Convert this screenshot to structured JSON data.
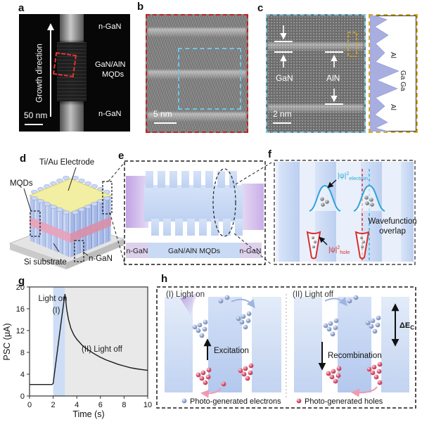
{
  "panel_letters": {
    "a": "a",
    "b": "b",
    "c": "c",
    "d": "d",
    "e": "e",
    "f": "f",
    "g": "g",
    "h": "h"
  },
  "colors": {
    "red_dashed": "#c9201d",
    "cyan_dashed": "#74c6e4",
    "yellow_dashed": "#d8a91f",
    "light_on_band": "#cdddf6",
    "light_off_band": "#e9e9e9",
    "electron_sphere": "#8fa0cc",
    "hole_sphere": "#d44d66",
    "wavefunction_blue": "#2ba4d8",
    "wavefunction_red": "#d62f2f"
  },
  "panel_a": {
    "growth_direction": "Growth direction",
    "region_top": "n-GaN",
    "region_mid_1": "GaN/AlN",
    "region_mid_2": "MQDs",
    "region_bottom": "n-GaN",
    "scale_bar": "50 nm"
  },
  "panel_b": {
    "scale_bar": "5 nm"
  },
  "panel_c": {
    "gan_label": "GaN",
    "aln_label": "AlN",
    "scale_bar": "2 nm",
    "profile": {
      "al_top": "Al",
      "ga_mid": "Ga Ga",
      "al_bottom": "Al"
    }
  },
  "panel_d": {
    "electrode": "Ti/Au Electrode",
    "mqds": "MQDs",
    "substrate": "Si substrate",
    "n_gan": "n-GaN"
  },
  "panel_e": {
    "left": "n-GaN",
    "mid": "GaN/AlN MQDs",
    "right": "n-GaN"
  },
  "panel_f": {
    "psi_prefix": "|ψ|",
    "psi_sup": "2",
    "electron_sub": "electron",
    "hole_sub": "hole",
    "overlap_1": "Wavefunction",
    "overlap_2": "overlap"
  },
  "panel_h": {
    "sec1_title": "(I)  Light on",
    "excitation": "Excitation",
    "legend_electrons": "Photo-generated electrons",
    "sec2_title": "(II)  Light off",
    "recombination": "Recombination",
    "legend_holes": "Photo-generated holes",
    "delta_e": "ΔE",
    "delta_e_sub": "C"
  },
  "chart_data": {
    "type": "line",
    "xlabel": "Time (s)",
    "ylabel": "PSC (μA)",
    "xlim": [
      0,
      10
    ],
    "ylim": [
      0,
      20
    ],
    "xticks": [
      0,
      2,
      4,
      6,
      8,
      10
    ],
    "yticks": [
      0,
      4,
      8,
      12,
      16,
      20
    ],
    "x": [
      0,
      1.9,
      2.0,
      2.1,
      2.25,
      2.4,
      2.55,
      2.7,
      2.85,
      3.0,
      3.05,
      3.15,
      3.3,
      3.5,
      3.75,
      4.0,
      4.5,
      5.0,
      5.5,
      6.0,
      6.5,
      7.0,
      7.5,
      8.0,
      8.5,
      9.0,
      9.5,
      10.0
    ],
    "y": [
      2.1,
      2.1,
      2.3,
      4.0,
      6.5,
      9.0,
      11.5,
      14.0,
      16.4,
      18.7,
      17.8,
      15.8,
      14.0,
      12.4,
      11.2,
      10.4,
      9.2,
      8.4,
      7.7,
      7.1,
      6.6,
      6.2,
      5.8,
      5.5,
      5.2,
      5.0,
      4.85,
      4.7
    ],
    "regions": [
      {
        "label": "light on",
        "x0": 2,
        "x1": 3,
        "color": "#cdddf6"
      },
      {
        "label": "light off",
        "x0": 3,
        "x1": 10,
        "color": "#e9e9e9"
      }
    ],
    "annotations": [
      {
        "text": "Light on"
      },
      {
        "text": "(I)"
      },
      {
        "text": "(II) Light off"
      }
    ],
    "line_color": "#1a1a1a",
    "grid": false,
    "legend": "none"
  }
}
